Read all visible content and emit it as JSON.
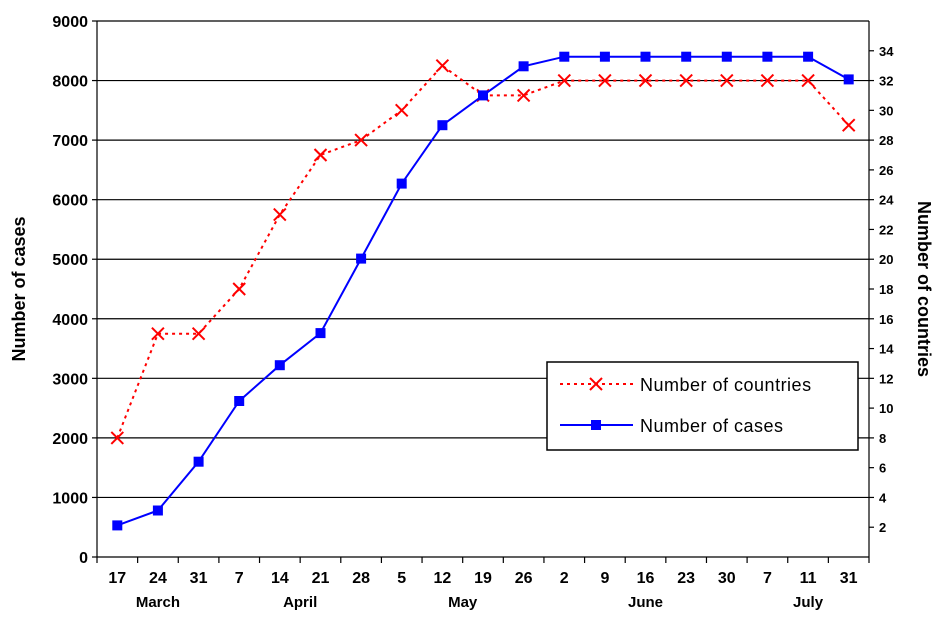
{
  "chart_data": {
    "type": "line",
    "categories": [
      "17",
      "24",
      "31",
      "7",
      "14",
      "21",
      "28",
      "5",
      "12",
      "19",
      "26",
      "2",
      "9",
      "16",
      "23",
      "30",
      "7",
      "11",
      "31"
    ],
    "months": [
      {
        "label": "March",
        "start": 0,
        "end": 2
      },
      {
        "label": "April",
        "start": 3,
        "end": 6
      },
      {
        "label": "May",
        "start": 7,
        "end": 10
      },
      {
        "label": "June",
        "start": 11,
        "end": 15
      },
      {
        "label": "July",
        "start": 16,
        "end": 18
      }
    ],
    "series": [
      {
        "name": "Number of countries",
        "axis": "right",
        "color": "#ff0000",
        "line": "dotted",
        "marker": "x",
        "values": [
          8,
          15,
          15,
          18,
          23,
          27,
          28,
          30,
          33,
          31,
          31,
          32,
          32,
          32,
          32,
          32,
          32,
          32,
          29
        ]
      },
      {
        "name": "Number of cases",
        "axis": "left",
        "color": "#0000ff",
        "line": "solid",
        "marker": "square",
        "values": [
          530,
          780,
          1600,
          2620,
          3220,
          3760,
          5010,
          6270,
          7250,
          7750,
          8240,
          8400,
          8400,
          8400,
          8400,
          8400,
          8400,
          8400,
          8020
        ]
      }
    ],
    "ylabel": "Number of cases",
    "ylabel_right": "Number of countries",
    "ylim": [
      0,
      9000
    ],
    "yticks": [
      0,
      1000,
      2000,
      3000,
      4000,
      5000,
      6000,
      7000,
      8000,
      9000
    ],
    "ylim_right": [
      0,
      36
    ],
    "yticks_right": [
      2,
      4,
      6,
      8,
      10,
      12,
      14,
      16,
      18,
      20,
      22,
      24,
      26,
      28,
      30,
      32,
      34
    ],
    "grid": true,
    "legend_position": "right"
  }
}
